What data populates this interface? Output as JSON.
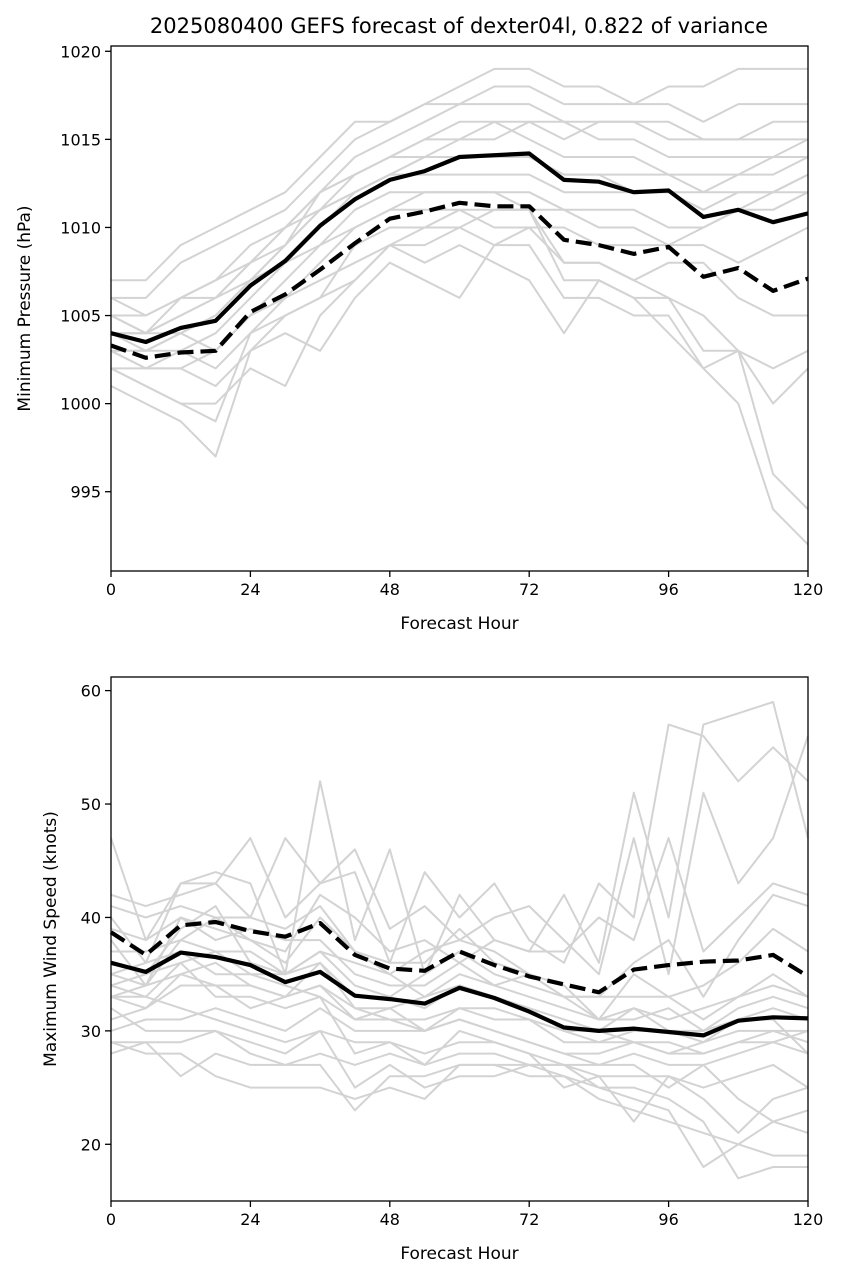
{
  "figure": {
    "title": "2025080400 GEFS forecast of dexter04l, 0.822 of variance"
  },
  "chart_data": [
    {
      "type": "line",
      "xlabel": "Forecast Hour",
      "ylabel": "Minimum Pressure (hPa)",
      "xlim": [
        0,
        120
      ],
      "ylim": [
        990.5,
        1020.3
      ],
      "xticks": [
        0,
        24,
        48,
        72,
        96,
        120
      ],
      "yticks": [
        995,
        1000,
        1005,
        1010,
        1015,
        1020
      ],
      "grid": false,
      "x": [
        0,
        6,
        12,
        18,
        24,
        30,
        36,
        42,
        48,
        54,
        60,
        66,
        72,
        78,
        84,
        90,
        96,
        102,
        108,
        114,
        120
      ],
      "series": [
        {
          "style": "solid",
          "values": [
            1004.0,
            1003.5,
            1004.3,
            1004.7,
            1006.7,
            1008.1,
            1010.1,
            1011.6,
            1012.7,
            1013.2,
            1014.0,
            1014.1,
            1014.2,
            1012.7,
            1012.6,
            1012.0,
            1012.1,
            1010.6,
            1011.0,
            1010.3,
            1010.8
          ]
        },
        {
          "style": "dashed",
          "values": [
            1003.3,
            1002.6,
            1002.9,
            1003.0,
            1005.2,
            1006.2,
            1007.6,
            1009.1,
            1010.5,
            1010.9,
            1011.4,
            1011.2,
            1011.2,
            1009.3,
            1009.0,
            1008.5,
            1008.9,
            1007.2,
            1007.7,
            1006.4,
            1007.1
          ]
        }
      ],
      "members": [
        [
          1007,
          1007,
          1009,
          1010,
          1011,
          1012,
          1014,
          1016,
          1016,
          1017,
          1018,
          1019,
          1019,
          1018,
          1018,
          1017,
          1018,
          1018,
          1019,
          1019,
          1019
        ],
        [
          1006,
          1006,
          1008,
          1009,
          1010,
          1011,
          1013,
          1015,
          1016,
          1017,
          1017,
          1018,
          1018,
          1017,
          1017,
          1017,
          1017,
          1016,
          1017,
          1017,
          1017
        ],
        [
          1005,
          1004,
          1006,
          1007,
          1009,
          1010,
          1012,
          1013,
          1014,
          1015,
          1016,
          1016,
          1016,
          1015,
          1016,
          1016,
          1015,
          1015,
          1015,
          1016,
          1016
        ],
        [
          1004,
          1004,
          1005,
          1006,
          1008,
          1009,
          1012,
          1013,
          1014,
          1014,
          1015,
          1015,
          1016,
          1016,
          1015,
          1015,
          1014,
          1014,
          1014,
          1014,
          1015
        ],
        [
          1003,
          1003,
          1004,
          1005,
          1007,
          1009,
          1011,
          1012,
          1013,
          1014,
          1014,
          1014,
          1014,
          1013,
          1013,
          1013,
          1013,
          1012,
          1013,
          1013,
          1014
        ],
        [
          1003,
          1002,
          1003,
          1004,
          1006,
          1008,
          1010,
          1012,
          1013,
          1013,
          1013,
          1013,
          1013,
          1012,
          1012,
          1012,
          1012,
          1011,
          1012,
          1012,
          1013
        ],
        [
          1002,
          1002,
          1002,
          1003,
          1005,
          1007,
          1009,
          1011,
          1012,
          1012,
          1012,
          1012,
          1012,
          1011,
          1011,
          1011,
          1010,
          1010,
          1011,
          1011,
          1012
        ],
        [
          1002,
          1001,
          1000,
          999,
          1004,
          1006,
          1008,
          1010,
          1011,
          1011,
          1011,
          1010,
          1010,
          1010,
          1009,
          1009,
          1009,
          1009,
          1008,
          1009,
          1010
        ],
        [
          1001,
          1000,
          999,
          997,
          1003,
          1005,
          1006,
          1009,
          1010,
          1010,
          1010,
          1009,
          1010,
          1008,
          1008,
          1007,
          1008,
          1008,
          1006,
          1005,
          1005
        ],
        [
          1002,
          1001,
          1000,
          1000,
          1002,
          1001,
          1005,
          1007,
          1009,
          1008,
          1009,
          1008,
          1007,
          1004,
          1007,
          1006,
          1006,
          1005,
          1003,
          1002,
          1003
        ],
        [
          1003,
          1002,
          1002,
          1001,
          1003,
          1004,
          1003,
          1006,
          1008,
          1007,
          1006,
          1009,
          1009,
          1006,
          1006,
          1005,
          1005,
          1002,
          1003,
          1000,
          1002
        ],
        [
          1004,
          1003,
          1003,
          1002,
          1004,
          1005,
          1006,
          1007,
          1009,
          1009,
          1010,
          1011,
          1011,
          1007,
          1007,
          1006,
          1004,
          1002,
          1000,
          994,
          992
        ],
        [
          1005,
          1004,
          1004,
          1003,
          1005,
          1006,
          1007,
          1008,
          1009,
          1010,
          1011,
          1011,
          1011,
          1008,
          1008,
          1007,
          1006,
          1003,
          1003,
          996,
          994
        ],
        [
          1006,
          1005,
          1006,
          1006,
          1007,
          1008,
          1009,
          1010,
          1011,
          1012,
          1012,
          1012,
          1011,
          1011,
          1010,
          1010,
          1009,
          1010,
          1011,
          1012,
          1013
        ],
        [
          1004,
          1004,
          1005,
          1006,
          1008,
          1010,
          1012,
          1014,
          1015,
          1016,
          1017,
          1017,
          1017,
          1016,
          1016,
          1016,
          1016,
          1015,
          1015,
          1015,
          1015
        ],
        [
          1003,
          1003,
          1004,
          1005,
          1007,
          1009,
          1011,
          1013,
          1014,
          1015,
          1015,
          1016,
          1015,
          1014,
          1014,
          1014,
          1013,
          1013,
          1013,
          1014,
          1014
        ],
        [
          1005,
          1005,
          1006,
          1007,
          1008,
          1010,
          1011,
          1012,
          1013,
          1014,
          1014,
          1014,
          1014,
          1013,
          1013,
          1012,
          1012,
          1012,
          1012,
          1012,
          1012
        ]
      ]
    },
    {
      "type": "line",
      "xlabel": "Forecast Hour",
      "ylabel": "Maximum Wind Speed (knots)",
      "xlim": [
        0,
        120
      ],
      "ylim": [
        15,
        61.2
      ],
      "xticks": [
        0,
        24,
        48,
        72,
        96,
        120
      ],
      "yticks": [
        20,
        30,
        40,
        50,
        60
      ],
      "grid": false,
      "x": [
        0,
        6,
        12,
        18,
        24,
        30,
        36,
        42,
        48,
        54,
        60,
        66,
        72,
        78,
        84,
        90,
        96,
        102,
        108,
        114,
        120
      ],
      "series": [
        {
          "style": "solid",
          "values": [
            36.0,
            35.2,
            36.9,
            36.5,
            35.8,
            34.3,
            35.2,
            33.1,
            32.8,
            32.4,
            33.8,
            32.9,
            31.7,
            30.3,
            30.0,
            30.2,
            29.9,
            29.6,
            30.9,
            31.2,
            31.1
          ]
        },
        {
          "style": "dashed",
          "values": [
            38.7,
            36.7,
            39.3,
            39.6,
            38.8,
            38.3,
            39.5,
            36.7,
            35.5,
            35.3,
            37.0,
            35.8,
            34.8,
            34.1,
            33.4,
            35.4,
            35.8,
            36.1,
            36.2,
            36.7,
            34.8
          ]
        }
      ],
      "members": [
        [
          47,
          38,
          43,
          44,
          43,
          35,
          52,
          38,
          46,
          35,
          42,
          38,
          37,
          42,
          36,
          51,
          40,
          57,
          58,
          59,
          47
        ],
        [
          42,
          41,
          42,
          43,
          47,
          40,
          43,
          44,
          36,
          44,
          40,
          43,
          38,
          36,
          43,
          40,
          57,
          56,
          52,
          55,
          52
        ],
        [
          40,
          36,
          43,
          43,
          40,
          47,
          43,
          46,
          39,
          41,
          38,
          40,
          41,
          38,
          35,
          47,
          35,
          51,
          43,
          47,
          56
        ],
        [
          38,
          34,
          40,
          39,
          38,
          37,
          42,
          40,
          37,
          38,
          36,
          38,
          37,
          37,
          40,
          38,
          47,
          37,
          40,
          43,
          42
        ],
        [
          35,
          34,
          38,
          40,
          38,
          36,
          40,
          37,
          35,
          37,
          38,
          37,
          35,
          33,
          33,
          36,
          38,
          33,
          38,
          42,
          41
        ],
        [
          34,
          33,
          36,
          37,
          35,
          35,
          37,
          34,
          33,
          35,
          37,
          35,
          34,
          33,
          31,
          35,
          33,
          34,
          36,
          39,
          37
        ],
        [
          33,
          32,
          35,
          36,
          34,
          33,
          36,
          32,
          32,
          33,
          34,
          33,
          32,
          31,
          30,
          32,
          31,
          32,
          33,
          35,
          33
        ],
        [
          31,
          32,
          34,
          34,
          32,
          33,
          34,
          31,
          31,
          31,
          32,
          32,
          31,
          29,
          29,
          30,
          30,
          30,
          32,
          33,
          32
        ],
        [
          30,
          31,
          31,
          32,
          31,
          30,
          32,
          30,
          30,
          30,
          31,
          30,
          29,
          28,
          28,
          29,
          28,
          29,
          30,
          30,
          30
        ],
        [
          29,
          29,
          29,
          30,
          29,
          28,
          30,
          29,
          29,
          28,
          29,
          29,
          28,
          27,
          27,
          28,
          27,
          27,
          28,
          29,
          28
        ],
        [
          28,
          29,
          26,
          28,
          27,
          27,
          28,
          27,
          28,
          27,
          28,
          28,
          27,
          27,
          26,
          26,
          26,
          25,
          26,
          27,
          25
        ],
        [
          29,
          28,
          28,
          26,
          25,
          25,
          25,
          24,
          25,
          24,
          27,
          27,
          26,
          26,
          25,
          24,
          23,
          18,
          20,
          22,
          21
        ],
        [
          32,
          30,
          30,
          30,
          28,
          27,
          27,
          23,
          26,
          26,
          27,
          27,
          27,
          27,
          25,
          25,
          24,
          22,
          17,
          18,
          18
        ],
        [
          33,
          33,
          32,
          31,
          30,
          29,
          30,
          25,
          27,
          25,
          26,
          26,
          27,
          26,
          24,
          23,
          22,
          21,
          20,
          19,
          19
        ],
        [
          34,
          35,
          36,
          33,
          33,
          32,
          33,
          28,
          29,
          27,
          30,
          29,
          28,
          25,
          26,
          22,
          26,
          24,
          21,
          24,
          25
        ],
        [
          35,
          36,
          37,
          35,
          35,
          34,
          33,
          31,
          32,
          30,
          31,
          30,
          29,
          28,
          27,
          27,
          25,
          27,
          24,
          22,
          23
        ],
        [
          37,
          37,
          38,
          37,
          37,
          35,
          36,
          33,
          33,
          32,
          34,
          33,
          32,
          30,
          29,
          29,
          28,
          28,
          29,
          30,
          29
        ],
        [
          39,
          38,
          40,
          38,
          39,
          38,
          38,
          35,
          34,
          34,
          36,
          34,
          33,
          32,
          31,
          32,
          30,
          29,
          31,
          32,
          31
        ],
        [
          41,
          40,
          41,
          40,
          40,
          39,
          41,
          37,
          36,
          36,
          39,
          36,
          35,
          33,
          33,
          33,
          33,
          31,
          33,
          34,
          33
        ],
        [
          36,
          35,
          39,
          41,
          36,
          35,
          37,
          36,
          35,
          33,
          35,
          34,
          35,
          34,
          31,
          31,
          32,
          30,
          31,
          31,
          28
        ],
        [
          33,
          34,
          35,
          34,
          34,
          33,
          34,
          32,
          31,
          30,
          32,
          31,
          31,
          30,
          30,
          29,
          29,
          28,
          29,
          29,
          30
        ]
      ]
    }
  ]
}
